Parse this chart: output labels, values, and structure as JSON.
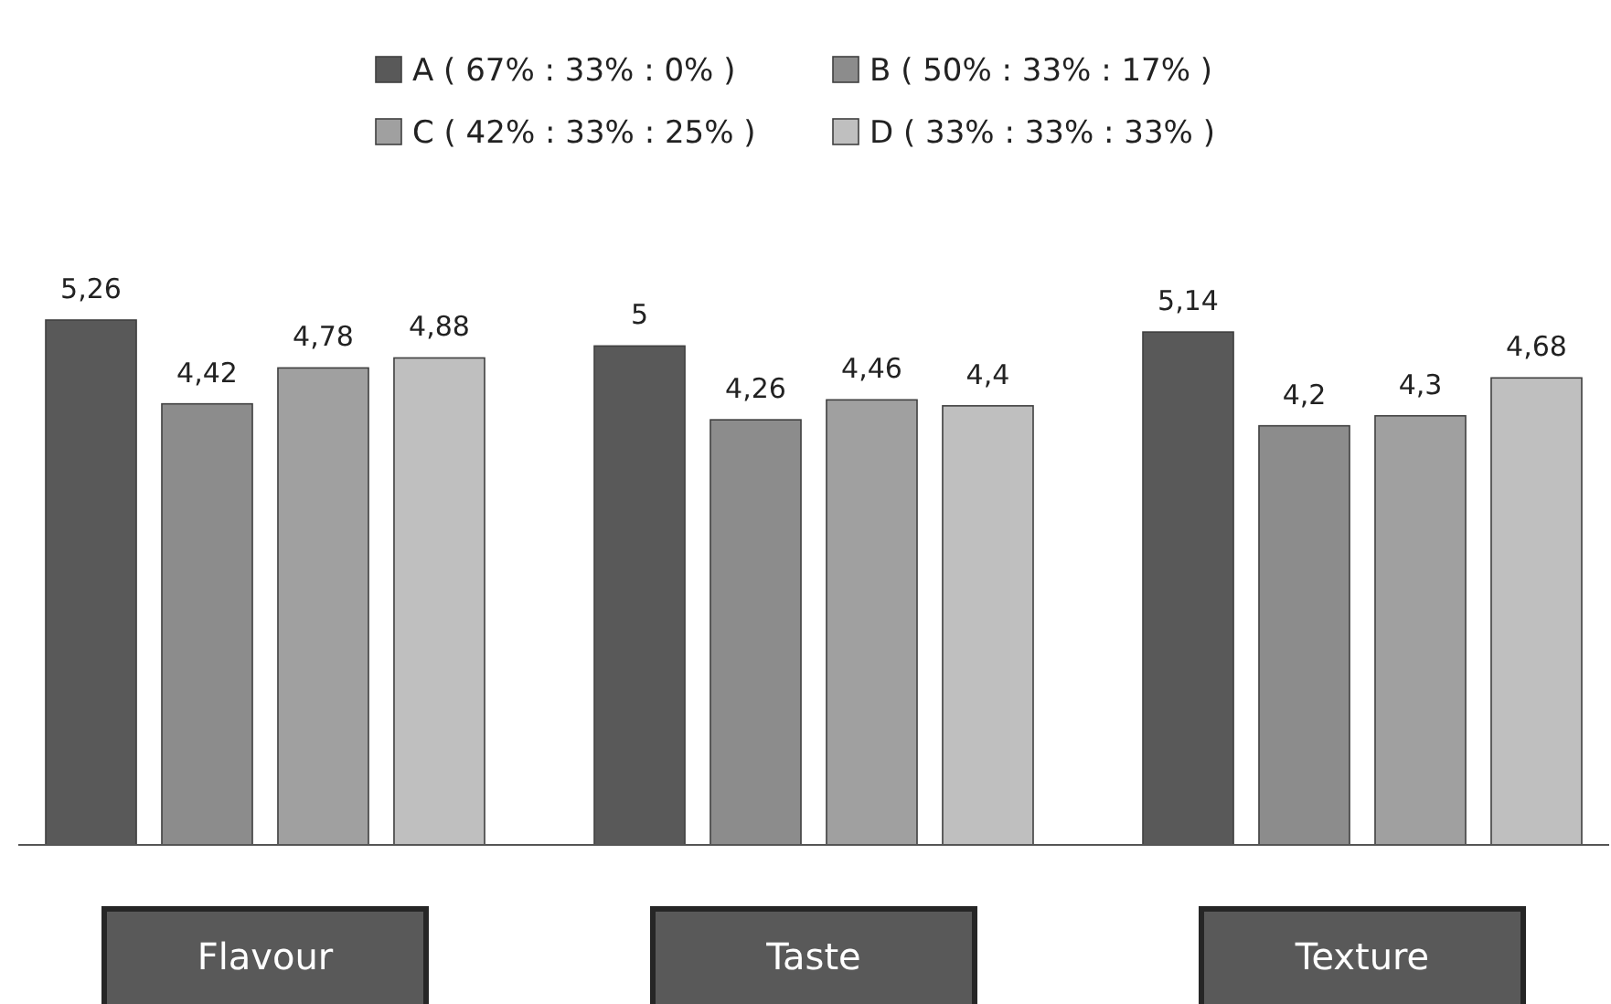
{
  "chart_data": {
    "type": "bar",
    "categories": [
      "Flavour",
      "Taste",
      "Texture"
    ],
    "tick_labels": "x",
    "legend": "top",
    "series": [
      {
        "name": "A ( 67% : 33% : 0% )",
        "color": "#595959",
        "values": [
          5.26,
          5,
          5.14
        ],
        "value_labels": [
          "5,26",
          "5",
          "5,14"
        ]
      },
      {
        "name": "B ( 50% : 33% : 17% )",
        "color": "#8c8c8c",
        "values": [
          4.42,
          4.26,
          4.2
        ],
        "value_labels": [
          "4,42",
          "4,26",
          "4,2"
        ]
      },
      {
        "name": "C ( 42% : 33% : 25% )",
        "color": "#a0a0a0",
        "values": [
          4.78,
          4.46,
          4.3
        ],
        "value_labels": [
          "4,78",
          "4,46",
          "4,3"
        ]
      },
      {
        "name": "D ( 33% : 33% : 33% )",
        "color": "#bfbfbf",
        "values": [
          4.88,
          4.4,
          4.68
        ],
        "value_labels": [
          "4,88",
          "4,4",
          "4,68"
        ]
      }
    ]
  }
}
